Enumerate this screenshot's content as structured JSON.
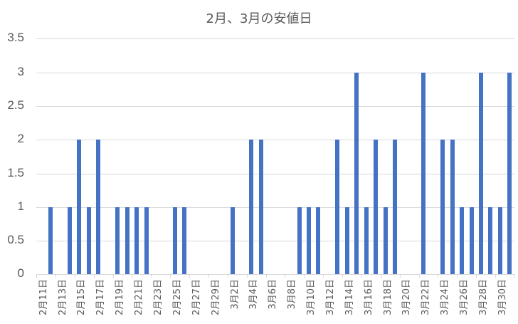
{
  "chart_data": {
    "type": "bar",
    "title": "2月、3月の安値日",
    "xlabel": "",
    "ylabel": "",
    "ylim": [
      0,
      3.5
    ],
    "yticks": [
      "0",
      "0.5",
      "1",
      "1.5",
      "2",
      "2.5",
      "3",
      "3.5"
    ],
    "grid": true,
    "legend": null,
    "bar_color": "#4472C4",
    "categories": [
      "2月11日",
      "2月12日",
      "2月13日",
      "2月14日",
      "2月15日",
      "2月16日",
      "2月17日",
      "2月18日",
      "2月19日",
      "2月20日",
      "2月21日",
      "2月22日",
      "2月23日",
      "2月24日",
      "2月25日",
      "2月26日",
      "2月27日",
      "2月28日",
      "2月29日",
      "3月1日",
      "3月2日",
      "3月3日",
      "3月4日",
      "3月5日",
      "3月6日",
      "3月7日",
      "3月8日",
      "3月9日",
      "3月10日",
      "3月11日",
      "3月12日",
      "3月13日",
      "3月14日",
      "3月15日",
      "3月16日",
      "3月17日",
      "3月18日",
      "3月19日",
      "3月20日",
      "3月21日",
      "3月22日",
      "3月23日",
      "3月24日",
      "3月25日",
      "3月26日",
      "3月27日",
      "3月28日",
      "3月29日",
      "3月30日",
      "3月31日"
    ],
    "values": [
      0,
      1,
      0,
      1,
      2,
      1,
      2,
      0,
      1,
      1,
      1,
      1,
      0,
      0,
      1,
      1,
      0,
      0,
      0,
      0,
      1,
      0,
      2,
      2,
      0,
      0,
      0,
      1,
      1,
      1,
      0,
      2,
      1,
      3,
      1,
      2,
      1,
      2,
      0,
      0,
      3,
      0,
      2,
      2,
      1,
      1,
      3,
      1,
      1,
      3
    ],
    "shown_xtick_labels": [
      "2月11日",
      "2月13日",
      "2月15日",
      "2月17日",
      "2月19日",
      "2月21日",
      "2月23日",
      "2月25日",
      "2月27日",
      "2月29日",
      "3月2日",
      "3月4日",
      "3月6日",
      "3月8日",
      "3月10日",
      "3月12日",
      "3月14日",
      "3月16日",
      "3月18日",
      "3月20日",
      "3月22日",
      "3月24日",
      "3月26日",
      "3月28日",
      "3月30日"
    ]
  }
}
